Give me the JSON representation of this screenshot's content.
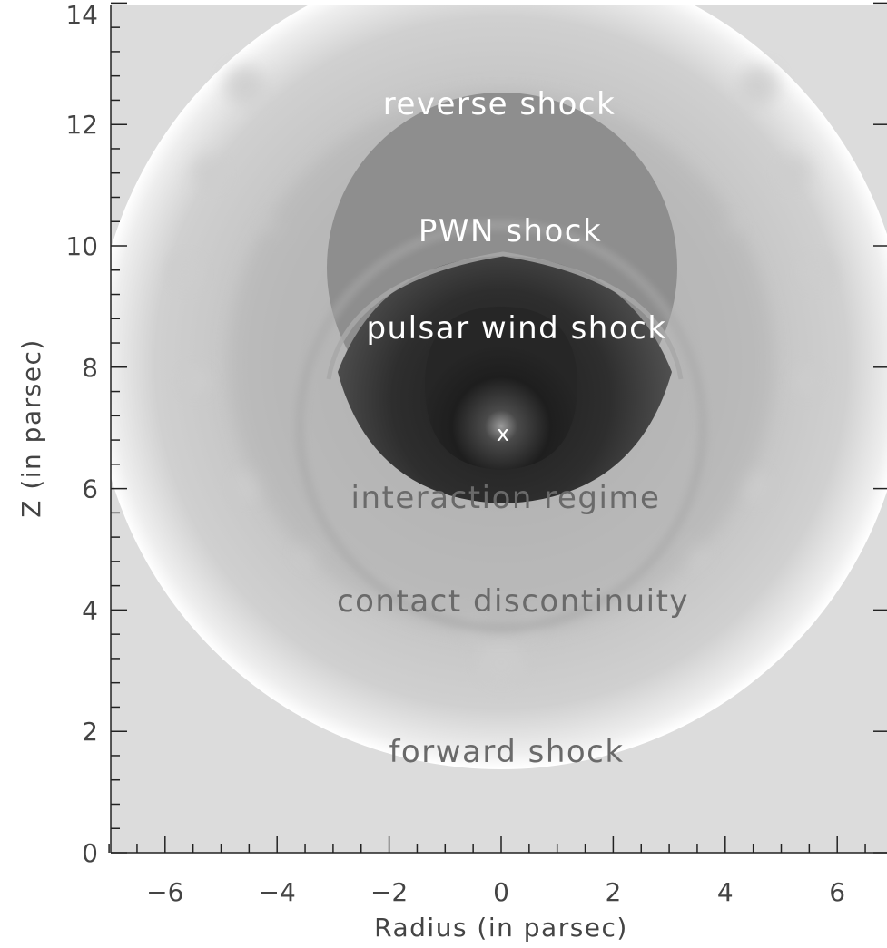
{
  "axes": {
    "x": {
      "title": "Radius (in parsec)",
      "range": [
        -7,
        7
      ],
      "major_ticks": [
        -6,
        -4,
        -2,
        0,
        2,
        4,
        6
      ],
      "tick_labels": [
        "−6",
        "−4",
        "−2",
        "0",
        "2",
        "4",
        "6"
      ],
      "minor_step": 0.5
    },
    "y": {
      "title": "Z (in parsec)",
      "range": [
        0,
        14
      ],
      "major_ticks": [
        0,
        2,
        4,
        6,
        8,
        10,
        12,
        14
      ],
      "tick_labels": [
        "0",
        "2",
        "4",
        "6",
        "8",
        "10",
        "12",
        "14"
      ],
      "minor_step": 0.4
    }
  },
  "labels": {
    "reverse_shock": "reverse shock",
    "pwn_shock": "PWN shock",
    "pulsar_wind_shock": "pulsar wind shock",
    "pulsar_marker": "x",
    "interaction_regime": "interaction regime",
    "contact_discontinuity": "contact discontinuity",
    "forward_shock": "forward shock"
  },
  "colors": {
    "ambient": "#dcdcdc",
    "forward_shell_edge": "#ffffff",
    "shocked_ejecta": "#b9b9b9",
    "unshocked_ejecta": "#8e8e8e",
    "pwn_shell": "#2a2a2a",
    "pulsar_wind": "#1a1a1a"
  }
}
